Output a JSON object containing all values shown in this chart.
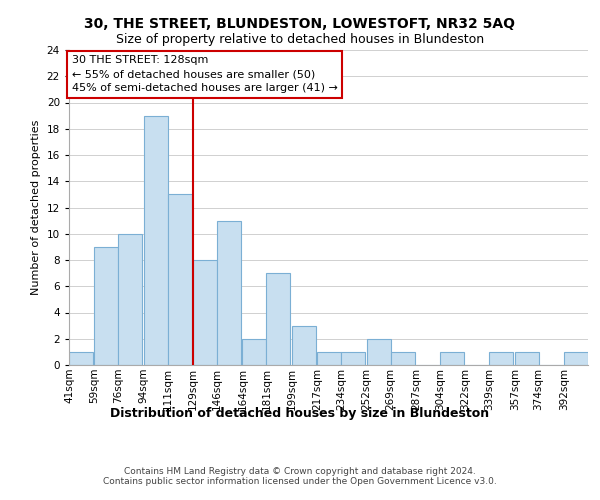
{
  "title1": "30, THE STREET, BLUNDESTON, LOWESTOFT, NR32 5AQ",
  "title2": "Size of property relative to detached houses in Blundeston",
  "xlabel": "Distribution of detached houses by size in Blundeston",
  "ylabel": "Number of detached properties",
  "bin_labels": [
    "41sqm",
    "59sqm",
    "76sqm",
    "94sqm",
    "111sqm",
    "129sqm",
    "146sqm",
    "164sqm",
    "181sqm",
    "199sqm",
    "217sqm",
    "234sqm",
    "252sqm",
    "269sqm",
    "287sqm",
    "304sqm",
    "322sqm",
    "339sqm",
    "357sqm",
    "374sqm",
    "392sqm"
  ],
  "bin_edges": [
    41,
    59,
    76,
    94,
    111,
    129,
    146,
    164,
    181,
    199,
    217,
    234,
    252,
    269,
    287,
    304,
    322,
    339,
    357,
    374,
    392
  ],
  "bin_width": 17,
  "counts": [
    1,
    9,
    10,
    19,
    13,
    8,
    11,
    2,
    7,
    3,
    1,
    1,
    2,
    1,
    0,
    1,
    0,
    1,
    1,
    0,
    1
  ],
  "property_line_x": 129,
  "bar_color": "#c8dff0",
  "bar_edge_color": "#7bafd4",
  "line_color": "#cc0000",
  "annotation_line1": "30 THE STREET: 128sqm",
  "annotation_line2": "← 55% of detached houses are smaller (50)",
  "annotation_line3": "45% of semi-detached houses are larger (41) →",
  "annotation_box_color": "#ffffff",
  "annotation_box_edge": "#cc0000",
  "ylim": [
    0,
    24
  ],
  "yticks": [
    0,
    2,
    4,
    6,
    8,
    10,
    12,
    14,
    16,
    18,
    20,
    22,
    24
  ],
  "footer1": "Contains HM Land Registry data © Crown copyright and database right 2024.",
  "footer2": "Contains public sector information licensed under the Open Government Licence v3.0.",
  "title1_fontsize": 10,
  "title2_fontsize": 9,
  "ylabel_fontsize": 8,
  "xlabel_fontsize": 9,
  "tick_fontsize": 7.5,
  "footer_fontsize": 6.5
}
